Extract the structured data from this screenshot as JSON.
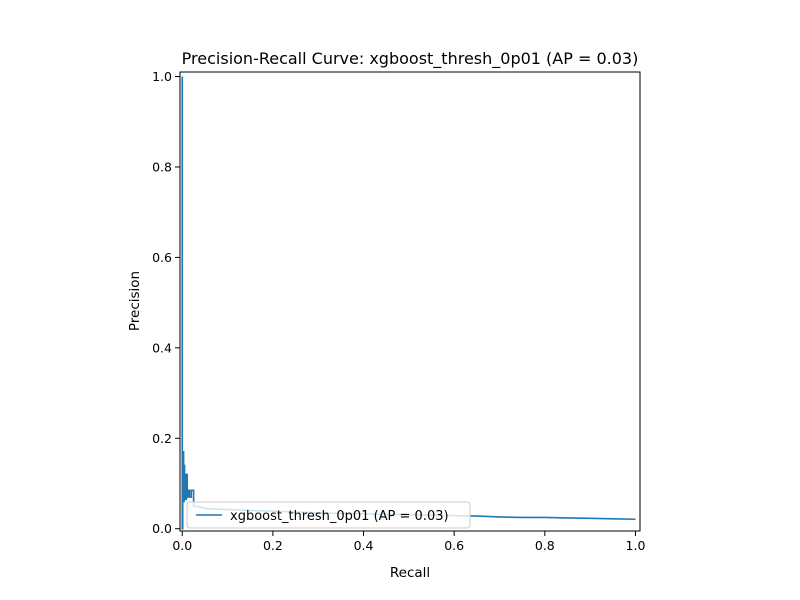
{
  "chart_data": {
    "type": "line",
    "title": "Precision-Recall Curve: xgboost_thresh_0p01 (AP = 0.03)",
    "xlabel": "Recall",
    "ylabel": "Precision",
    "xlim": [
      -0.005,
      1.01
    ],
    "ylim": [
      -0.005,
      1.01
    ],
    "xticks": [
      0.0,
      0.2,
      0.4,
      0.6,
      0.8,
      1.0
    ],
    "xtick_labels": [
      "0.0",
      "0.2",
      "0.4",
      "0.6",
      "0.8",
      "1.0"
    ],
    "yticks": [
      0.0,
      0.2,
      0.4,
      0.6,
      0.8,
      1.0
    ],
    "ytick_labels": [
      "0.0",
      "0.2",
      "0.4",
      "0.6",
      "0.8",
      "1.0"
    ],
    "grid": false,
    "legend": "lower-right",
    "color": "#1f77b4",
    "series": [
      {
        "name": "xgboost_thresh_0p01 (AP = 0.03)",
        "x": [
          0.0,
          0.0,
          0.001,
          0.001,
          0.003,
          0.003,
          0.004,
          0.004,
          0.005,
          0.005,
          0.006,
          0.006,
          0.007,
          0.007,
          0.009,
          0.009,
          0.011,
          0.011,
          0.013,
          0.013,
          0.016,
          0.016,
          0.02,
          0.02,
          0.025,
          0.025,
          0.03,
          0.05,
          0.08,
          0.12,
          0.16,
          0.2,
          0.25,
          0.3,
          0.35,
          0.4,
          0.45,
          0.5,
          0.55,
          0.6,
          0.65,
          0.7,
          0.75,
          0.8,
          0.85,
          0.9,
          0.95,
          1.0
        ],
        "y": [
          1.0,
          0.0,
          0.0,
          0.17,
          0.17,
          0.06,
          0.06,
          0.14,
          0.14,
          0.07,
          0.07,
          0.12,
          0.12,
          0.065,
          0.065,
          0.12,
          0.12,
          0.07,
          0.07,
          0.085,
          0.085,
          0.07,
          0.07,
          0.085,
          0.085,
          0.05,
          0.05,
          0.045,
          0.043,
          0.042,
          0.04,
          0.039,
          0.037,
          0.035,
          0.034,
          0.033,
          0.032,
          0.031,
          0.03,
          0.029,
          0.028,
          0.026,
          0.025,
          0.025,
          0.024,
          0.023,
          0.022,
          0.021
        ]
      }
    ]
  }
}
